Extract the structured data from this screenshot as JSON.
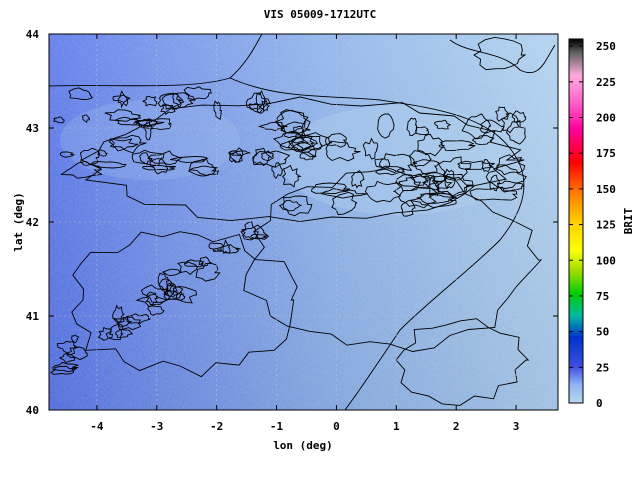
{
  "chart_data": {
    "type": "heatmap",
    "title": "VIS 05009-1712UTC",
    "xlabel": "lon (deg)",
    "ylabel": "lat (deg)",
    "xlim": [
      -4.8,
      3.7
    ],
    "ylim": [
      40,
      44
    ],
    "xticks": [
      -4,
      -3,
      -2,
      -1,
      0,
      1,
      2,
      3
    ],
    "yticks": [
      40,
      41,
      42,
      43,
      44
    ],
    "grid": true,
    "colorbar": {
      "label": "BRIT",
      "range": [
        0,
        255
      ],
      "ticks": [
        0,
        25,
        50,
        75,
        100,
        125,
        150,
        175,
        200,
        225,
        250
      ],
      "placement": "right"
    },
    "field": {
      "background_brightness_range": [
        20,
        15
      ],
      "contour_region": "Pyrenees and northeast Spain mountain relief, dense contours near lat 42.4-43.2, lon -0.5 to 2.8"
    }
  }
}
